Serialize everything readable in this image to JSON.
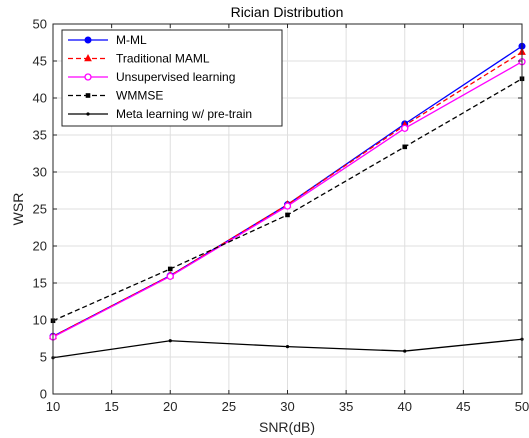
{
  "chart_data": {
    "type": "line",
    "title": "Rician Distribution",
    "xlabel": "SNR(dB)",
    "ylabel": "WSR",
    "x": [
      10,
      20,
      30,
      40,
      50
    ],
    "xlim": [
      10,
      50
    ],
    "ylim": [
      0,
      50
    ],
    "xticks": [
      10,
      15,
      20,
      25,
      30,
      35,
      40,
      45,
      50
    ],
    "yticks": [
      0,
      5,
      10,
      15,
      20,
      25,
      30,
      35,
      40,
      45,
      50
    ],
    "grid": true,
    "legend_position": "top-left",
    "series": [
      {
        "name": "M-ML",
        "values": [
          7.8,
          16.0,
          25.6,
          36.5,
          47.0
        ],
        "color": "#0000ff",
        "dash": "solid",
        "marker": "circle-filled"
      },
      {
        "name": "Traditional MAML",
        "values": [
          7.8,
          16.0,
          25.6,
          36.3,
          46.2
        ],
        "color": "#ff0000",
        "dash": "dashed",
        "marker": "triangle"
      },
      {
        "name": "Unsupervised learning",
        "values": [
          7.7,
          15.9,
          25.4,
          35.9,
          44.9
        ],
        "color": "#ff00ff",
        "dash": "solid",
        "marker": "circle-open"
      },
      {
        "name": "WMMSE",
        "values": [
          9.9,
          16.9,
          24.2,
          33.4,
          42.6
        ],
        "color": "#000000",
        "dash": "dashed",
        "marker": "square"
      },
      {
        "name": "Meta learning w/ pre-train",
        "values": [
          4.9,
          7.2,
          6.4,
          5.8,
          7.4
        ],
        "color": "#000000",
        "dash": "solid",
        "marker": "dot"
      }
    ]
  }
}
